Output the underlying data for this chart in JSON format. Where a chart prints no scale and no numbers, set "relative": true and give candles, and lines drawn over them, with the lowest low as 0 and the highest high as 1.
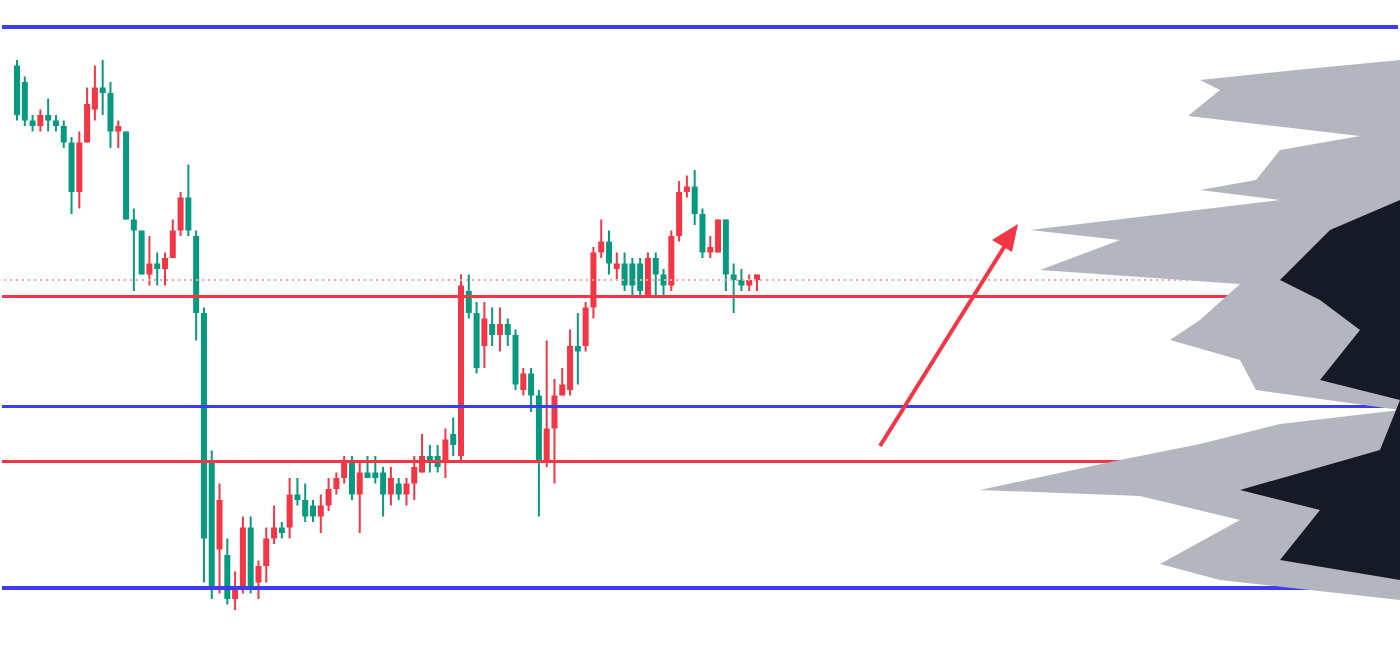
{
  "chart_data": {
    "type": "candlestick",
    "relative": true,
    "categories": [
      null,
      null,
      null,
      null,
      null,
      null,
      null,
      null,
      null,
      null,
      null,
      null,
      null,
      null,
      null,
      null,
      null,
      null,
      null,
      null,
      null,
      null,
      null,
      null,
      null,
      null,
      null,
      null,
      null,
      null,
      null,
      null,
      null,
      null,
      null,
      null,
      null,
      null,
      null,
      null,
      null,
      null,
      null,
      null,
      null,
      null,
      null,
      null,
      null,
      null,
      null,
      null,
      null,
      null,
      null,
      null,
      null,
      null,
      null,
      null,
      null,
      null,
      null,
      null,
      null,
      null,
      null,
      null,
      null,
      null,
      null,
      null,
      null,
      null,
      null,
      null,
      null,
      null,
      null,
      null,
      null,
      null,
      null,
      null,
      null,
      null,
      null,
      null,
      null,
      null,
      null,
      null,
      null,
      null,
      null,
      null
    ],
    "ohlc": [
      [
        0.99,
        1.0,
        0.89,
        0.9
      ],
      [
        0.96,
        0.97,
        0.88,
        0.89
      ],
      [
        0.89,
        0.9,
        0.87,
        0.88
      ],
      [
        0.88,
        0.91,
        0.87,
        0.9
      ],
      [
        0.9,
        0.93,
        0.87,
        0.89
      ],
      [
        0.89,
        0.9,
        0.87,
        0.88
      ],
      [
        0.88,
        0.89,
        0.84,
        0.85
      ],
      [
        0.85,
        0.86,
        0.72,
        0.76
      ],
      [
        0.76,
        0.87,
        0.73,
        0.85
      ],
      [
        0.85,
        0.95,
        0.85,
        0.92
      ],
      [
        0.91,
        0.99,
        0.89,
        0.95
      ],
      [
        0.95,
        1.0,
        0.9,
        0.94
      ],
      [
        0.94,
        0.96,
        0.84,
        0.87
      ],
      [
        0.87,
        0.89,
        0.84,
        0.88
      ],
      [
        0.87,
        0.87,
        0.71,
        0.71
      ],
      [
        0.71,
        0.73,
        0.58,
        0.69
      ],
      [
        0.69,
        0.69,
        0.61,
        0.61
      ],
      [
        0.61,
        0.68,
        0.59,
        0.63
      ],
      [
        0.63,
        0.65,
        0.59,
        0.62
      ],
      [
        0.62,
        0.65,
        0.59,
        0.64
      ],
      [
        0.64,
        0.71,
        0.64,
        0.69
      ],
      [
        0.69,
        0.76,
        0.68,
        0.75
      ],
      [
        0.75,
        0.81,
        0.68,
        0.69
      ],
      [
        0.68,
        0.69,
        0.49,
        0.54
      ],
      [
        0.54,
        0.55,
        0.05,
        0.13
      ],
      [
        0.27,
        0.29,
        0.02,
        0.04
      ],
      [
        0.11,
        0.23,
        0.03,
        0.2
      ],
      [
        0.1,
        0.13,
        0.01,
        0.02
      ],
      [
        0.02,
        0.07,
        0,
        0.04
      ],
      [
        0.04,
        0.17,
        0.03,
        0.15
      ],
      [
        0.15,
        0.17,
        0.03,
        0.04
      ],
      [
        0.05,
        0.09,
        0.02,
        0.08
      ],
      [
        0.08,
        0.15,
        0.05,
        0.13
      ],
      [
        0.13,
        0.19,
        0.12,
        0.15
      ],
      [
        0.15,
        0.16,
        0.13,
        0.14
      ],
      [
        0.15,
        0.24,
        0.13,
        0.21
      ],
      [
        0.21,
        0.24,
        0.19,
        0.2
      ],
      [
        0.2,
        0.23,
        0.16,
        0.17
      ],
      [
        0.19,
        0.2,
        0.16,
        0.17
      ],
      [
        0.17,
        0.21,
        0.14,
        0.19
      ],
      [
        0.19,
        0.24,
        0.18,
        0.22
      ],
      [
        0.22,
        0.25,
        0.21,
        0.24
      ],
      [
        0.24,
        0.28,
        0.23,
        0.27
      ],
      [
        0.27,
        0.28,
        0.2,
        0.21
      ],
      [
        0.21,
        0.27,
        0.14,
        0.25
      ],
      [
        0.25,
        0.28,
        0.24,
        0.24
      ],
      [
        0.25,
        0.28,
        0.23,
        0.24
      ],
      [
        0.25,
        0.26,
        0.17,
        0.21
      ],
      [
        0.21,
        0.26,
        0.19,
        0.24
      ],
      [
        0.23,
        0.24,
        0.2,
        0.21
      ],
      [
        0.21,
        0.24,
        0.19,
        0.23
      ],
      [
        0.23,
        0.28,
        0.2,
        0.26
      ],
      [
        0.25,
        0.32,
        0.25,
        0.28
      ],
      [
        0.28,
        0.3,
        0.25,
        0.27
      ],
      [
        0.28,
        0.3,
        0.25,
        0.26
      ],
      [
        0.27,
        0.33,
        0.24,
        0.31
      ],
      [
        0.32,
        0.35,
        0.28,
        0.3
      ],
      [
        0.28,
        0.61,
        0.27,
        0.59
      ],
      [
        0.58,
        0.61,
        0.53,
        0.54
      ],
      [
        0.54,
        0.56,
        0.43,
        0.44
      ],
      [
        0.48,
        0.56,
        0.44,
        0.53
      ],
      [
        0.52,
        0.55,
        0.48,
        0.5
      ],
      [
        0.5,
        0.55,
        0.47,
        0.52
      ],
      [
        0.52,
        0.53,
        0.48,
        0.5
      ],
      [
        0.5,
        0.51,
        0.4,
        0.41
      ],
      [
        0.4,
        0.44,
        0.39,
        0.43
      ],
      [
        0.43,
        0.44,
        0.36,
        0.39
      ],
      [
        0.39,
        0.4,
        0.17,
        0.27
      ],
      [
        0.27,
        0.49,
        0.26,
        0.33
      ],
      [
        0.33,
        0.42,
        0.23,
        0.39
      ],
      [
        0.39,
        0.44,
        0.39,
        0.41
      ],
      [
        0.4,
        0.51,
        0.39,
        0.48
      ],
      [
        0.48,
        0.54,
        0.41,
        0.47
      ],
      [
        0.48,
        0.56,
        0.47,
        0.55
      ],
      [
        0.55,
        0.66,
        0.53,
        0.65
      ],
      [
        0.65,
        0.71,
        0.64,
        0.67
      ],
      [
        0.67,
        0.69,
        0.61,
        0.63
      ],
      [
        0.62,
        0.65,
        0.6,
        0.63
      ],
      [
        0.63,
        0.65,
        0.58,
        0.59
      ],
      [
        0.63,
        0.64,
        0.57,
        0.59
      ],
      [
        0.63,
        0.64,
        0.57,
        0.58
      ],
      [
        0.57,
        0.65,
        0.57,
        0.64
      ],
      [
        0.64,
        0.65,
        0.57,
        0.61
      ],
      [
        0.61,
        0.62,
        0.57,
        0.59
      ],
      [
        0.59,
        0.69,
        0.58,
        0.68
      ],
      [
        0.68,
        0.78,
        0.67,
        0.76
      ],
      [
        0.76,
        0.79,
        0.75,
        0.77
      ],
      [
        0.77,
        0.8,
        0.7,
        0.72
      ],
      [
        0.72,
        0.73,
        0.64,
        0.65
      ],
      [
        0.65,
        0.68,
        0.64,
        0.66
      ],
      [
        0.65,
        0.71,
        0.65,
        0.71
      ],
      [
        0.71,
        0.71,
        0.58,
        0.61
      ],
      [
        0.61,
        0.63,
        0.54,
        0.6
      ],
      [
        0.6,
        0.62,
        0.58,
        0.59
      ],
      [
        0.59,
        0.61,
        0.58,
        0.6
      ],
      [
        0.6,
        0.61,
        0.58,
        0.61
      ]
    ],
    "colors": [
      "#089981",
      "#089981",
      "#089981",
      "#f23645",
      "#089981",
      "#089981",
      "#089981",
      "#089981",
      "#f23645",
      "#f23645",
      "#f23645",
      "#089981",
      "#089981",
      "#f23645",
      "#089981",
      "#089981",
      "#089981",
      "#f23645",
      "#089981",
      "#f23645",
      "#f23645",
      "#f23645",
      "#089981",
      "#089981",
      "#089981",
      "#089981",
      "#f23645",
      "#089981",
      "#f23645",
      "#f23645",
      "#089981",
      "#f23645",
      "#f23645",
      "#f23645",
      "#089981",
      "#f23645",
      "#089981",
      "#089981",
      "#089981",
      "#f23645",
      "#f23645",
      "#f23645",
      "#f23645",
      "#089981",
      "#f23645",
      "#089981",
      "#089981",
      "#089981",
      "#f23645",
      "#089981",
      "#f23645",
      "#f23645",
      "#f23645",
      "#089981",
      "#089981",
      "#f23645",
      "#089981",
      "#f23645",
      "#089981",
      "#089981",
      "#f23645",
      "#089981",
      "#f23645",
      "#089981",
      "#089981",
      "#f23645",
      "#089981",
      "#089981",
      "#f23645",
      "#f23645",
      "#f23645",
      "#f23645",
      "#089981",
      "#f23645",
      "#f23645",
      "#f23645",
      "#089981",
      "#f23645",
      "#089981",
      "#089981",
      "#089981",
      "#f23645",
      "#089981",
      "#089981",
      "#f23645",
      "#f23645",
      "#f23645",
      "#089981",
      "#089981",
      "#f23645",
      "#f23645",
      "#089981",
      "#089981",
      "#089981",
      "#f23645",
      "#f23645"
    ],
    "ref_lines": [
      {
        "axis": "y",
        "value": 1.06,
        "color": "#3d3df2"
      },
      {
        "axis": "y",
        "value": 0.37,
        "color": "#3d3df2"
      },
      {
        "axis": "y",
        "value": 0.04,
        "color": "#3d3df2"
      },
      {
        "axis": "y",
        "value": 0.57,
        "color": "#f23645"
      },
      {
        "axis": "y",
        "value": 0.27,
        "color": "#f23645"
      },
      {
        "axis": "y",
        "value": 0.6,
        "color": "#f5a3a3",
        "line_style": "dotted"
      }
    ]
  }
}
